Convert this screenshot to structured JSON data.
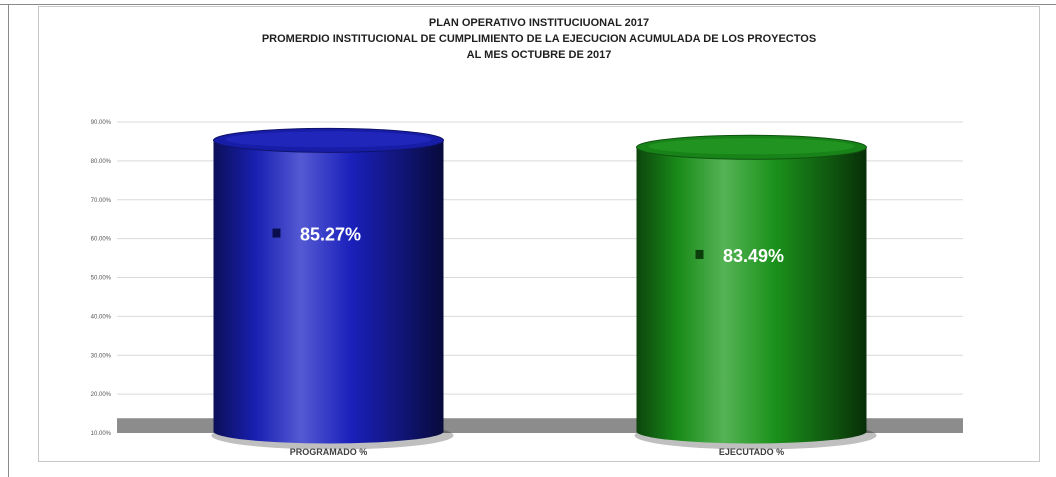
{
  "chart_data": {
    "type": "bar",
    "style": "3d-cylinder",
    "title_lines": [
      "PLAN OPERATIVO INSTITUCIUONAL 2017",
      "PROMERDIO INSTITUCIONAL DE CUMPLIMIENTO DE  LA EJECUCION ACUMULADA DE LOS PROYECTOS",
      "AL MES OCTUBRE DE 2017"
    ],
    "categories": [
      "PROGRAMADO %",
      "EJECUTADO %"
    ],
    "values": [
      85.27,
      83.49
    ],
    "value_labels": [
      "85.27%",
      "83.49%"
    ],
    "colors": [
      "#1b22c4",
      "#1c9a1c"
    ],
    "ylim": [
      10,
      90
    ],
    "yticks": [
      "10.00%",
      "20.00%",
      "30.00%",
      "40.00%",
      "50.00%",
      "60.00%",
      "70.00%",
      "80.00%",
      "90.00%"
    ],
    "grid": true,
    "floor_color": "#8c8c8c",
    "legend": false
  }
}
